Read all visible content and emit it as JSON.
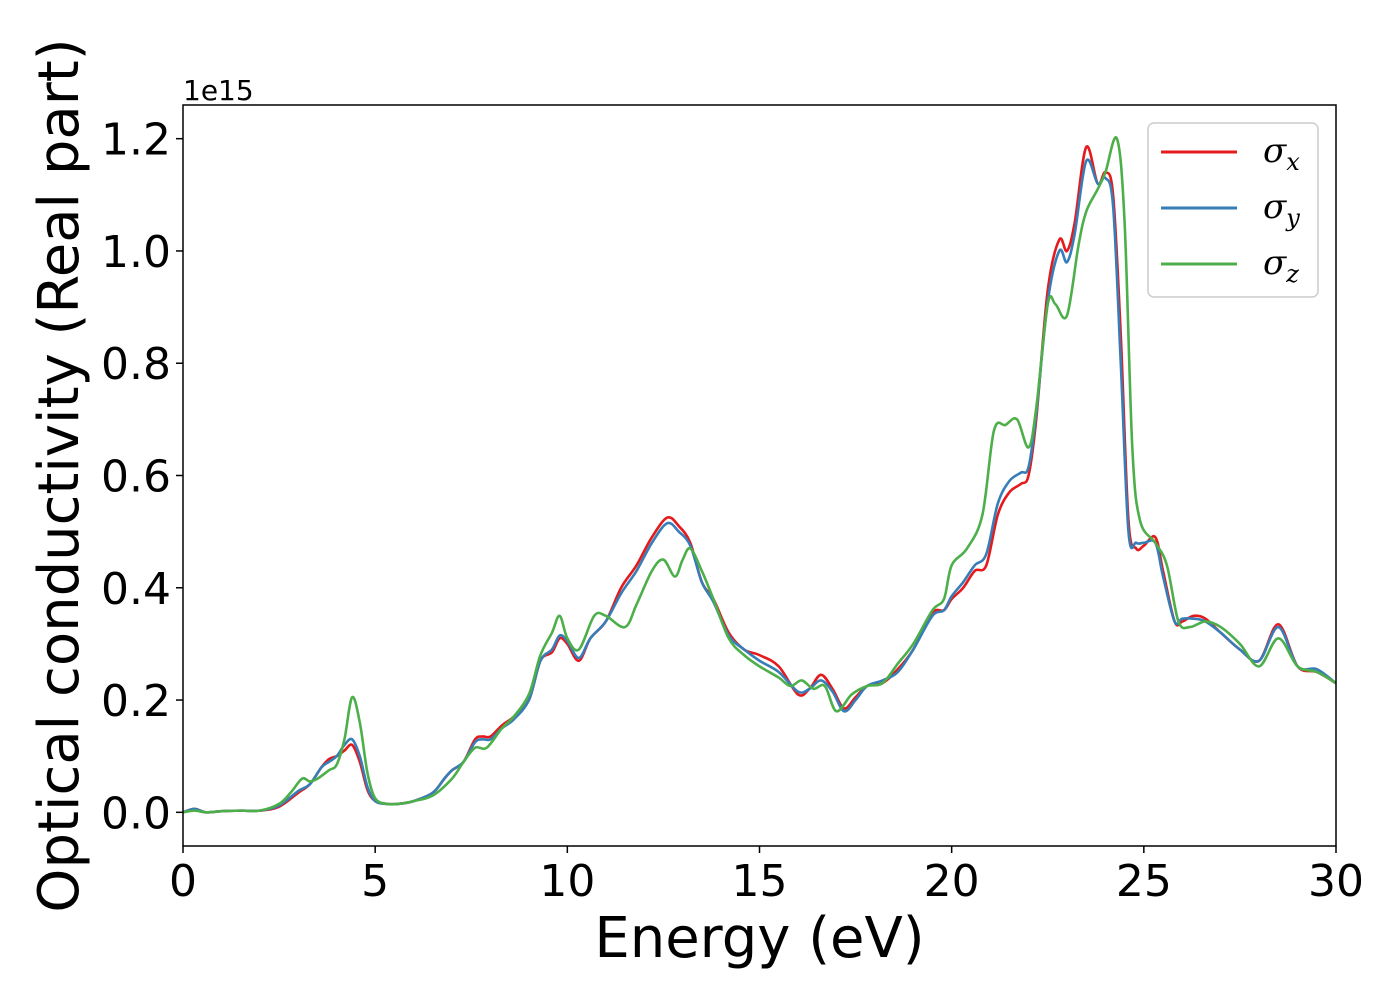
{
  "chart_data": {
    "type": "line",
    "xlabel": "Energy (eV)",
    "ylabel": "Optical conductivity (Real part)",
    "y_offset_text": "1e15",
    "y_scale_exponent": 15,
    "xlim": [
      0,
      30
    ],
    "ylim": [
      -0.06,
      1.26
    ],
    "x_ticks": [
      0,
      5,
      10,
      15,
      20,
      25,
      30
    ],
    "x_tick_labels": [
      "0",
      "5",
      "10",
      "15",
      "20",
      "25",
      "30"
    ],
    "y_ticks": [
      0.0,
      0.2,
      0.4,
      0.6,
      0.8,
      1.0,
      1.2
    ],
    "y_tick_labels": [
      "0.0",
      "0.2",
      "0.4",
      "0.6",
      "0.8",
      "1.0",
      "1.2"
    ],
    "grid": false,
    "legend_position": "top-right",
    "series": [
      {
        "name": "σx",
        "symbol": "σ",
        "subscript": "x",
        "color": "#e41a1c",
        "x": [
          0,
          0.3,
          0.6,
          1.0,
          1.5,
          2.0,
          2.5,
          3.0,
          3.3,
          3.6,
          3.8,
          4.0,
          4.2,
          4.4,
          4.6,
          4.8,
          5.0,
          5.3,
          5.6,
          6.0,
          6.5,
          6.8,
          7.0,
          7.3,
          7.6,
          7.8,
          8.0,
          8.3,
          8.6,
          9.0,
          9.3,
          9.6,
          9.8,
          10.0,
          10.3,
          10.6,
          11.0,
          11.4,
          11.8,
          12.2,
          12.6,
          12.9,
          13.2,
          13.5,
          13.8,
          14.2,
          14.6,
          15.0,
          15.5,
          16.0,
          16.3,
          16.6,
          16.9,
          17.2,
          17.5,
          17.8,
          18.2,
          18.6,
          19.0,
          19.5,
          19.8,
          20.0,
          20.3,
          20.6,
          20.9,
          21.2,
          21.5,
          21.8,
          22.0,
          22.2,
          22.5,
          22.8,
          23.0,
          23.2,
          23.5,
          23.8,
          24.0,
          24.2,
          24.4,
          24.6,
          24.8,
          25.0,
          25.3,
          25.5,
          25.8,
          26.0,
          26.3,
          26.6,
          27.0,
          27.5,
          28.0,
          28.5,
          29.0,
          29.5,
          30.0
        ],
        "y": [
          0.0,
          0.006,
          0.0,
          0.002,
          0.003,
          0.003,
          0.01,
          0.035,
          0.05,
          0.08,
          0.095,
          0.1,
          0.11,
          0.12,
          0.09,
          0.04,
          0.02,
          0.015,
          0.015,
          0.02,
          0.035,
          0.06,
          0.075,
          0.09,
          0.13,
          0.135,
          0.135,
          0.155,
          0.17,
          0.2,
          0.27,
          0.285,
          0.31,
          0.3,
          0.27,
          0.31,
          0.34,
          0.4,
          0.44,
          0.49,
          0.525,
          0.51,
          0.48,
          0.41,
          0.38,
          0.32,
          0.29,
          0.28,
          0.26,
          0.21,
          0.22,
          0.245,
          0.22,
          0.185,
          0.205,
          0.225,
          0.23,
          0.255,
          0.29,
          0.355,
          0.36,
          0.38,
          0.4,
          0.43,
          0.44,
          0.53,
          0.57,
          0.585,
          0.6,
          0.7,
          0.93,
          1.02,
          1.0,
          1.05,
          1.185,
          1.12,
          1.14,
          1.1,
          0.85,
          0.52,
          0.47,
          0.475,
          0.49,
          0.43,
          0.34,
          0.34,
          0.35,
          0.345,
          0.32,
          0.29,
          0.27,
          0.335,
          0.26,
          0.25,
          0.23
        ]
      },
      {
        "name": "σy",
        "symbol": "σ",
        "subscript": "y",
        "color": "#377eb8",
        "x": [
          0,
          0.3,
          0.6,
          1.0,
          1.5,
          2.0,
          2.5,
          3.0,
          3.3,
          3.6,
          3.8,
          4.0,
          4.2,
          4.4,
          4.6,
          4.8,
          5.0,
          5.3,
          5.6,
          6.0,
          6.5,
          6.8,
          7.0,
          7.3,
          7.6,
          7.8,
          8.0,
          8.3,
          8.6,
          9.0,
          9.3,
          9.6,
          9.8,
          10.0,
          10.3,
          10.6,
          11.0,
          11.4,
          11.8,
          12.2,
          12.6,
          12.9,
          13.2,
          13.5,
          13.8,
          14.2,
          14.6,
          15.0,
          15.5,
          16.0,
          16.3,
          16.6,
          16.9,
          17.2,
          17.5,
          17.8,
          18.2,
          18.6,
          19.0,
          19.5,
          19.8,
          20.0,
          20.3,
          20.6,
          20.9,
          21.2,
          21.5,
          21.8,
          22.0,
          22.2,
          22.5,
          22.8,
          23.0,
          23.2,
          23.5,
          23.8,
          24.0,
          24.2,
          24.4,
          24.6,
          24.8,
          25.0,
          25.3,
          25.5,
          25.8,
          26.0,
          26.3,
          26.6,
          27.0,
          27.5,
          28.0,
          28.5,
          29.0,
          29.5,
          30.0
        ],
        "y": [
          0.0,
          0.006,
          0.0,
          0.002,
          0.003,
          0.003,
          0.012,
          0.038,
          0.05,
          0.08,
          0.09,
          0.1,
          0.12,
          0.13,
          0.1,
          0.045,
          0.02,
          0.015,
          0.015,
          0.02,
          0.035,
          0.06,
          0.075,
          0.09,
          0.125,
          0.13,
          0.13,
          0.15,
          0.165,
          0.2,
          0.27,
          0.29,
          0.315,
          0.305,
          0.275,
          0.31,
          0.34,
          0.39,
          0.43,
          0.48,
          0.515,
          0.5,
          0.475,
          0.41,
          0.375,
          0.315,
          0.29,
          0.27,
          0.25,
          0.215,
          0.22,
          0.235,
          0.215,
          0.18,
          0.2,
          0.225,
          0.235,
          0.25,
          0.29,
          0.35,
          0.36,
          0.385,
          0.41,
          0.44,
          0.46,
          0.55,
          0.59,
          0.605,
          0.615,
          0.71,
          0.91,
          1.0,
          0.98,
          1.03,
          1.16,
          1.12,
          1.13,
          1.08,
          0.8,
          0.5,
          0.48,
          0.48,
          0.48,
          0.42,
          0.34,
          0.345,
          0.345,
          0.34,
          0.32,
          0.29,
          0.27,
          0.33,
          0.26,
          0.255,
          0.23
        ]
      },
      {
        "name": "σz",
        "symbol": "σ",
        "subscript": "z",
        "color": "#4daf4a",
        "x": [
          0,
          0.3,
          0.6,
          1.0,
          1.5,
          2.0,
          2.5,
          2.8,
          3.1,
          3.3,
          3.5,
          3.8,
          4.0,
          4.2,
          4.4,
          4.6,
          4.8,
          5.0,
          5.3,
          5.6,
          6.0,
          6.5,
          7.0,
          7.3,
          7.6,
          7.9,
          8.3,
          8.6,
          9.0,
          9.3,
          9.6,
          9.8,
          10.0,
          10.3,
          10.7,
          11.0,
          11.5,
          11.8,
          12.2,
          12.5,
          12.8,
          13.0,
          13.2,
          13.5,
          13.8,
          14.2,
          14.6,
          15.0,
          15.5,
          15.8,
          16.1,
          16.4,
          16.7,
          17.0,
          17.4,
          17.8,
          18.2,
          18.6,
          19.0,
          19.5,
          19.8,
          20.0,
          20.4,
          20.8,
          21.1,
          21.4,
          21.7,
          22.0,
          22.2,
          22.5,
          22.7,
          23.0,
          23.3,
          23.5,
          23.8,
          24.0,
          24.3,
          24.5,
          24.7,
          24.9,
          25.3,
          25.6,
          25.9,
          26.2,
          26.6,
          27.0,
          27.5,
          28.0,
          28.5,
          29.0,
          29.5,
          30.0
        ],
        "y": [
          0.0,
          0.003,
          0.0,
          0.002,
          0.003,
          0.003,
          0.015,
          0.035,
          0.06,
          0.055,
          0.06,
          0.075,
          0.085,
          0.13,
          0.205,
          0.16,
          0.07,
          0.025,
          0.015,
          0.015,
          0.02,
          0.03,
          0.06,
          0.09,
          0.115,
          0.115,
          0.15,
          0.17,
          0.21,
          0.28,
          0.32,
          0.35,
          0.31,
          0.29,
          0.35,
          0.35,
          0.33,
          0.37,
          0.43,
          0.45,
          0.42,
          0.45,
          0.47,
          0.43,
          0.38,
          0.31,
          0.28,
          0.26,
          0.24,
          0.225,
          0.235,
          0.22,
          0.225,
          0.18,
          0.21,
          0.225,
          0.23,
          0.265,
          0.3,
          0.36,
          0.38,
          0.44,
          0.47,
          0.53,
          0.68,
          0.69,
          0.7,
          0.65,
          0.72,
          0.905,
          0.905,
          0.885,
          1.01,
          1.07,
          1.11,
          1.14,
          1.2,
          1.05,
          0.65,
          0.52,
          0.48,
          0.44,
          0.34,
          0.33,
          0.34,
          0.33,
          0.3,
          0.26,
          0.31,
          0.26,
          0.25,
          0.23
        ]
      }
    ]
  }
}
